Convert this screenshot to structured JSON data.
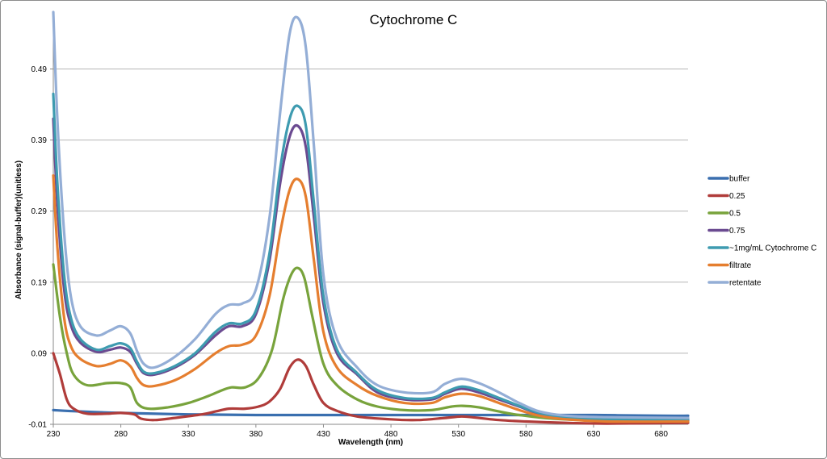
{
  "chart_data": {
    "type": "line",
    "title": "Cytochrome C",
    "xlabel": "Wavelength (nm)",
    "ylabel": "Absorbance (signal-buffer)(unitless)",
    "xlim": [
      230,
      700
    ],
    "ylim": [
      -0.01,
      0.57
    ],
    "x_ticks": [
      230,
      280,
      330,
      380,
      430,
      480,
      530,
      580,
      630,
      680
    ],
    "x_tick_labels": [
      "230",
      "280",
      "330",
      "380",
      "430",
      "480",
      "530",
      "580",
      "630",
      "680"
    ],
    "y_ticks": [
      -0.01,
      0.09,
      0.19,
      0.29,
      0.39,
      0.49
    ],
    "y_tick_labels": [
      "-0.01",
      "0.09",
      "0.19",
      "0.29",
      "0.39",
      "0.49"
    ],
    "grid": "horizontal",
    "legend_position": "right",
    "series": [
      {
        "name": "buffer",
        "color": "#3a6faf",
        "points": [
          [
            230,
            0.01
          ],
          [
            250,
            0.008
          ],
          [
            280,
            0.006
          ],
          [
            330,
            0.004
          ],
          [
            380,
            0.003
          ],
          [
            430,
            0.003
          ],
          [
            480,
            0.003
          ],
          [
            530,
            0.003
          ],
          [
            580,
            0.003
          ],
          [
            630,
            0.003
          ],
          [
            680,
            0.002
          ],
          [
            700,
            0.002
          ]
        ]
      },
      {
        "name": "0.25",
        "color": "#b03c3a",
        "points": [
          [
            230,
            0.09
          ],
          [
            235,
            0.06
          ],
          [
            240,
            0.025
          ],
          [
            245,
            0.012
          ],
          [
            255,
            0.005
          ],
          [
            270,
            0.005
          ],
          [
            280,
            0.006
          ],
          [
            290,
            0.004
          ],
          [
            295,
            -0.002
          ],
          [
            305,
            -0.004
          ],
          [
            320,
            -0.001
          ],
          [
            340,
            0.004
          ],
          [
            350,
            0.008
          ],
          [
            360,
            0.012
          ],
          [
            372,
            0.012
          ],
          [
            382,
            0.015
          ],
          [
            390,
            0.022
          ],
          [
            398,
            0.04
          ],
          [
            405,
            0.07
          ],
          [
            411,
            0.081
          ],
          [
            417,
            0.072
          ],
          [
            423,
            0.045
          ],
          [
            430,
            0.02
          ],
          [
            440,
            0.009
          ],
          [
            455,
            0.001
          ],
          [
            480,
            -0.003
          ],
          [
            500,
            -0.004
          ],
          [
            520,
            -0.001
          ],
          [
            532,
            0.001
          ],
          [
            540,
            0.0
          ],
          [
            560,
            -0.004
          ],
          [
            580,
            -0.006
          ],
          [
            610,
            -0.008
          ],
          [
            640,
            -0.009
          ],
          [
            700,
            -0.008
          ]
        ]
      },
      {
        "name": "0.5",
        "color": "#78a33c",
        "points": [
          [
            230,
            0.215
          ],
          [
            235,
            0.14
          ],
          [
            240,
            0.09
          ],
          [
            245,
            0.06
          ],
          [
            255,
            0.045
          ],
          [
            270,
            0.048
          ],
          [
            280,
            0.048
          ],
          [
            287,
            0.042
          ],
          [
            292,
            0.02
          ],
          [
            300,
            0.012
          ],
          [
            315,
            0.014
          ],
          [
            330,
            0.02
          ],
          [
            345,
            0.03
          ],
          [
            355,
            0.038
          ],
          [
            362,
            0.042
          ],
          [
            372,
            0.042
          ],
          [
            382,
            0.055
          ],
          [
            392,
            0.095
          ],
          [
            400,
            0.165
          ],
          [
            406,
            0.2
          ],
          [
            411,
            0.21
          ],
          [
            416,
            0.195
          ],
          [
            422,
            0.14
          ],
          [
            430,
            0.075
          ],
          [
            440,
            0.045
          ],
          [
            455,
            0.025
          ],
          [
            470,
            0.015
          ],
          [
            490,
            0.01
          ],
          [
            510,
            0.01
          ],
          [
            525,
            0.015
          ],
          [
            533,
            0.016
          ],
          [
            545,
            0.014
          ],
          [
            560,
            0.008
          ],
          [
            575,
            0.003
          ],
          [
            600,
            -0.002
          ],
          [
            640,
            -0.005
          ],
          [
            700,
            -0.005
          ]
        ]
      },
      {
        "name": "0.75",
        "color": "#6b4b91",
        "points": [
          [
            230,
            0.42
          ],
          [
            233,
            0.3
          ],
          [
            238,
            0.18
          ],
          [
            243,
            0.13
          ],
          [
            250,
            0.105
          ],
          [
            262,
            0.092
          ],
          [
            272,
            0.095
          ],
          [
            280,
            0.098
          ],
          [
            287,
            0.092
          ],
          [
            292,
            0.075
          ],
          [
            297,
            0.062
          ],
          [
            305,
            0.06
          ],
          [
            320,
            0.07
          ],
          [
            335,
            0.088
          ],
          [
            350,
            0.115
          ],
          [
            360,
            0.128
          ],
          [
            370,
            0.128
          ],
          [
            380,
            0.145
          ],
          [
            390,
            0.22
          ],
          [
            398,
            0.33
          ],
          [
            405,
            0.395
          ],
          [
            411,
            0.41
          ],
          [
            417,
            0.38
          ],
          [
            423,
            0.28
          ],
          [
            430,
            0.16
          ],
          [
            440,
            0.09
          ],
          [
            455,
            0.06
          ],
          [
            470,
            0.035
          ],
          [
            490,
            0.025
          ],
          [
            510,
            0.025
          ],
          [
            520,
            0.033
          ],
          [
            532,
            0.04
          ],
          [
            545,
            0.035
          ],
          [
            560,
            0.025
          ],
          [
            575,
            0.015
          ],
          [
            590,
            0.005
          ],
          [
            610,
            -0.001
          ],
          [
            640,
            -0.004
          ],
          [
            700,
            -0.004
          ]
        ]
      },
      {
        "name": "~1mg/mL Cytochrome C",
        "color": "#3e9bb0",
        "points": [
          [
            230,
            0.455
          ],
          [
            233,
            0.33
          ],
          [
            238,
            0.2
          ],
          [
            243,
            0.14
          ],
          [
            250,
            0.11
          ],
          [
            262,
            0.095
          ],
          [
            272,
            0.1
          ],
          [
            280,
            0.104
          ],
          [
            287,
            0.097
          ],
          [
            292,
            0.078
          ],
          [
            297,
            0.064
          ],
          [
            305,
            0.062
          ],
          [
            320,
            0.072
          ],
          [
            335,
            0.09
          ],
          [
            350,
            0.12
          ],
          [
            360,
            0.132
          ],
          [
            370,
            0.132
          ],
          [
            380,
            0.15
          ],
          [
            390,
            0.23
          ],
          [
            398,
            0.35
          ],
          [
            405,
            0.42
          ],
          [
            411,
            0.438
          ],
          [
            417,
            0.41
          ],
          [
            423,
            0.3
          ],
          [
            430,
            0.17
          ],
          [
            440,
            0.095
          ],
          [
            455,
            0.062
          ],
          [
            470,
            0.038
          ],
          [
            490,
            0.027
          ],
          [
            510,
            0.027
          ],
          [
            520,
            0.035
          ],
          [
            532,
            0.043
          ],
          [
            545,
            0.038
          ],
          [
            560,
            0.027
          ],
          [
            575,
            0.016
          ],
          [
            590,
            0.006
          ],
          [
            610,
            0.0
          ],
          [
            640,
            -0.003
          ],
          [
            700,
            -0.003
          ]
        ]
      },
      {
        "name": "filtrate",
        "color": "#e57e2f",
        "points": [
          [
            230,
            0.34
          ],
          [
            233,
            0.24
          ],
          [
            238,
            0.14
          ],
          [
            243,
            0.1
          ],
          [
            250,
            0.082
          ],
          [
            262,
            0.072
          ],
          [
            272,
            0.075
          ],
          [
            280,
            0.08
          ],
          [
            287,
            0.072
          ],
          [
            292,
            0.055
          ],
          [
            297,
            0.045
          ],
          [
            305,
            0.044
          ],
          [
            320,
            0.052
          ],
          [
            335,
            0.068
          ],
          [
            350,
            0.09
          ],
          [
            360,
            0.1
          ],
          [
            370,
            0.102
          ],
          [
            380,
            0.115
          ],
          [
            390,
            0.17
          ],
          [
            398,
            0.26
          ],
          [
            405,
            0.32
          ],
          [
            411,
            0.335
          ],
          [
            417,
            0.31
          ],
          [
            423,
            0.22
          ],
          [
            430,
            0.12
          ],
          [
            440,
            0.07
          ],
          [
            455,
            0.045
          ],
          [
            470,
            0.03
          ],
          [
            490,
            0.02
          ],
          [
            510,
            0.02
          ],
          [
            520,
            0.028
          ],
          [
            532,
            0.033
          ],
          [
            545,
            0.03
          ],
          [
            560,
            0.02
          ],
          [
            575,
            0.01
          ],
          [
            590,
            0.002
          ],
          [
            610,
            -0.003
          ],
          [
            640,
            -0.006
          ],
          [
            700,
            -0.006
          ]
        ]
      },
      {
        "name": "retentate",
        "color": "#94aed6",
        "points": [
          [
            230,
            0.57
          ],
          [
            233,
            0.42
          ],
          [
            238,
            0.26
          ],
          [
            243,
            0.17
          ],
          [
            250,
            0.128
          ],
          [
            262,
            0.115
          ],
          [
            272,
            0.122
          ],
          [
            280,
            0.128
          ],
          [
            287,
            0.118
          ],
          [
            292,
            0.093
          ],
          [
            297,
            0.075
          ],
          [
            305,
            0.07
          ],
          [
            320,
            0.085
          ],
          [
            335,
            0.11
          ],
          [
            350,
            0.145
          ],
          [
            360,
            0.158
          ],
          [
            370,
            0.16
          ],
          [
            380,
            0.18
          ],
          [
            390,
            0.28
          ],
          [
            398,
            0.43
          ],
          [
            405,
            0.54
          ],
          [
            411,
            0.562
          ],
          [
            417,
            0.52
          ],
          [
            423,
            0.38
          ],
          [
            430,
            0.2
          ],
          [
            440,
            0.11
          ],
          [
            455,
            0.07
          ],
          [
            470,
            0.045
          ],
          [
            490,
            0.035
          ],
          [
            510,
            0.035
          ],
          [
            520,
            0.047
          ],
          [
            532,
            0.054
          ],
          [
            545,
            0.048
          ],
          [
            560,
            0.035
          ],
          [
            575,
            0.02
          ],
          [
            590,
            0.008
          ],
          [
            610,
            0.002
          ],
          [
            640,
            0.0
          ],
          [
            700,
            -0.001
          ]
        ]
      }
    ]
  }
}
